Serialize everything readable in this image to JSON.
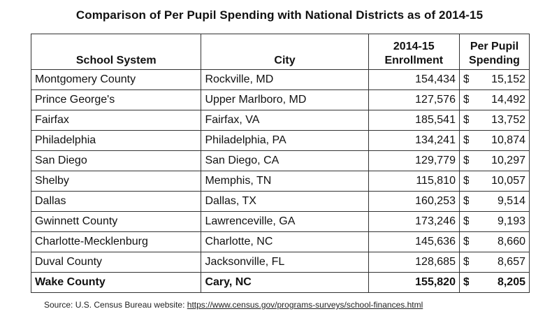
{
  "title": "Comparison of Per Pupil Spending with National Districts as of 2014-15",
  "table": {
    "headers": {
      "school_system": "School System",
      "city": "City",
      "enrollment_line1": "2014-15",
      "enrollment_line2": "Enrollment",
      "spending_line1": "Per Pupil",
      "spending_line2": "Spending"
    },
    "currency_symbol": "$",
    "rows": [
      {
        "system": "Montgomery County",
        "city": "Rockville, MD",
        "enrollment": "154,434",
        "spending": "15,152"
      },
      {
        "system": "Prince George's",
        "city": "Upper Marlboro, MD",
        "enrollment": "127,576",
        "spending": "14,492"
      },
      {
        "system": "Fairfax",
        "city": "Fairfax, VA",
        "enrollment": "185,541",
        "spending": "13,752"
      },
      {
        "system": "Philadelphia",
        "city": "Philadelphia, PA",
        "enrollment": "134,241",
        "spending": "10,874"
      },
      {
        "system": "San Diego",
        "city": "San Diego, CA",
        "enrollment": "129,779",
        "spending": "10,297"
      },
      {
        "system": "Shelby",
        "city": "Memphis, TN",
        "enrollment": "115,810",
        "spending": "10,057"
      },
      {
        "system": "Dallas",
        "city": "Dallas, TX",
        "enrollment": "160,253",
        "spending": "9,514"
      },
      {
        "system": "Gwinnett County",
        "city": "Lawrenceville, GA",
        "enrollment": "173,246",
        "spending": "9,193"
      },
      {
        "system": "Charlotte-Mecklenburg",
        "city": "Charlotte, NC",
        "enrollment": "145,636",
        "spending": "8,660"
      },
      {
        "system": "Duval County",
        "city": "Jacksonville, FL",
        "enrollment": "128,685",
        "spending": "8,657"
      },
      {
        "system": "Wake County",
        "city": "Cary, NC",
        "enrollment": "155,820",
        "spending": "8,205"
      }
    ]
  },
  "source": {
    "prefix": "Source: U.S. Census Bureau website: ",
    "url": "https://www.census.gov/programs-surveys/school-finances.html"
  }
}
